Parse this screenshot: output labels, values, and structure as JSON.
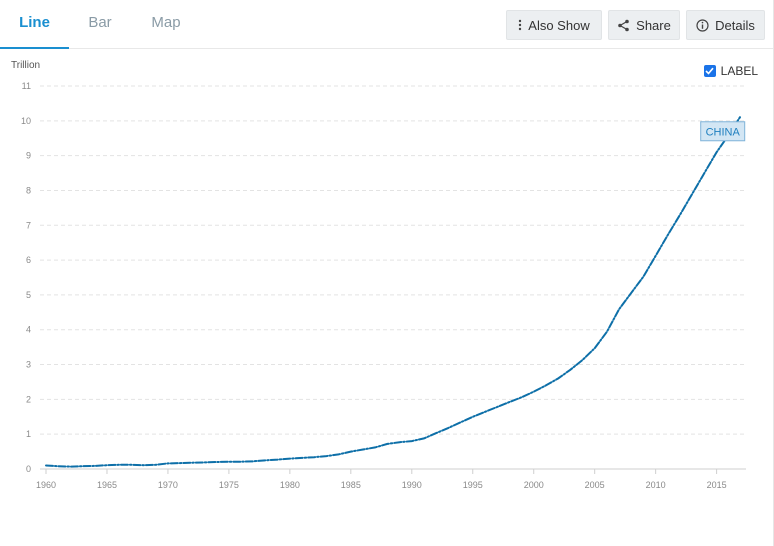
{
  "tabs": [
    {
      "label": "Line",
      "active": true
    },
    {
      "label": "Bar",
      "active": false
    },
    {
      "label": "Map",
      "active": false
    }
  ],
  "actions": {
    "also_show": "Also Show",
    "share": "Share",
    "details": "Details"
  },
  "label_toggle": {
    "label": "LABEL",
    "checked": true
  },
  "colors": {
    "accent": "#1a8fd0",
    "series": "#0d6fa8",
    "callout_fill": "#d3e6f4",
    "callout_border": "#7fb3d9"
  },
  "chart_data": {
    "type": "line",
    "unit_label": "Trillion",
    "xlim": [
      1960,
      2017
    ],
    "ylim": [
      0,
      11
    ],
    "x_ticks": [
      1960,
      1965,
      1970,
      1975,
      1980,
      1985,
      1990,
      1995,
      2000,
      2005,
      2010,
      2015
    ],
    "y_ticks": [
      0,
      1,
      2,
      3,
      4,
      5,
      6,
      7,
      8,
      9,
      10,
      11
    ],
    "grid": true,
    "series": [
      {
        "name": "CHINA",
        "line_style": "dash-dot",
        "x": [
          1960,
          1961,
          1962,
          1963,
          1964,
          1965,
          1966,
          1967,
          1968,
          1969,
          1970,
          1971,
          1972,
          1973,
          1974,
          1975,
          1976,
          1977,
          1978,
          1979,
          1980,
          1981,
          1982,
          1983,
          1984,
          1985,
          1986,
          1987,
          1988,
          1989,
          1990,
          1991,
          1992,
          1993,
          1994,
          1995,
          1996,
          1997,
          1998,
          1999,
          2000,
          2001,
          2002,
          2003,
          2004,
          2005,
          2006,
          2007,
          2008,
          2009,
          2010,
          2011,
          2012,
          2013,
          2014,
          2015,
          2016,
          2017
        ],
        "y": [
          0.1,
          0.08,
          0.07,
          0.08,
          0.09,
          0.11,
          0.12,
          0.12,
          0.11,
          0.12,
          0.16,
          0.17,
          0.18,
          0.19,
          0.2,
          0.21,
          0.21,
          0.22,
          0.25,
          0.27,
          0.3,
          0.32,
          0.34,
          0.37,
          0.42,
          0.5,
          0.56,
          0.62,
          0.72,
          0.77,
          0.8,
          0.88,
          1.03,
          1.18,
          1.34,
          1.5,
          1.64,
          1.78,
          1.92,
          2.06,
          2.22,
          2.4,
          2.6,
          2.85,
          3.13,
          3.47,
          3.94,
          4.59,
          5.06,
          5.53,
          6.12,
          6.72,
          7.3,
          7.9,
          8.5,
          9.1,
          9.6,
          10.15
        ]
      }
    ],
    "annotations": [
      {
        "text": "CHINA",
        "x": 2015.5,
        "y": 9.7
      }
    ]
  }
}
